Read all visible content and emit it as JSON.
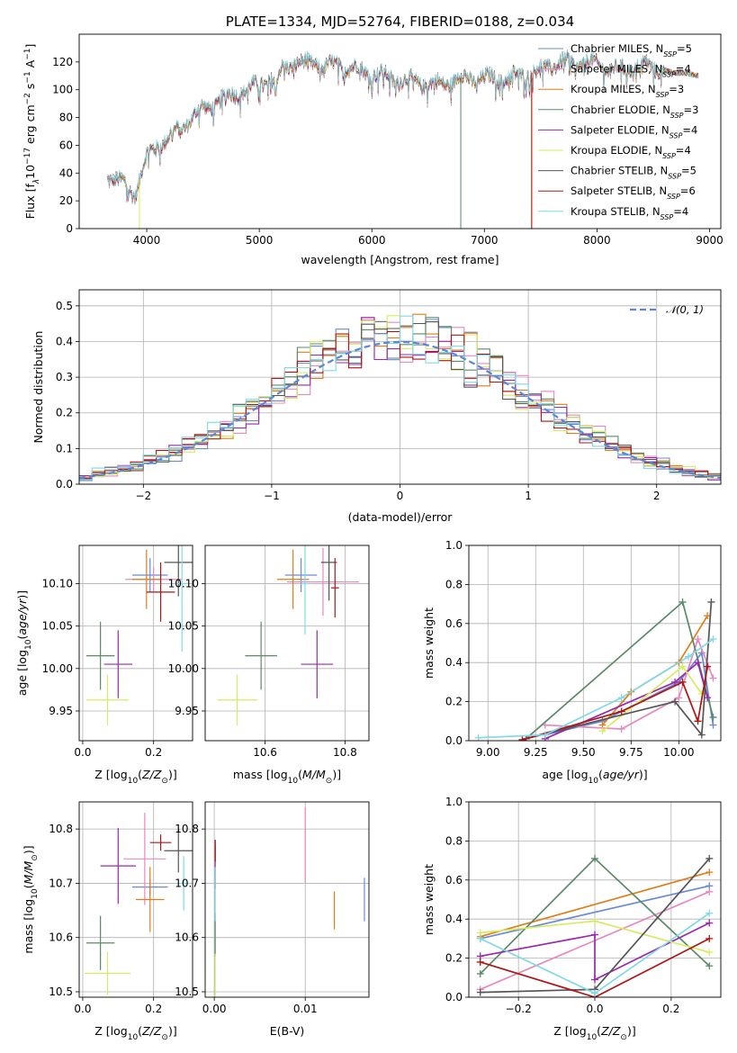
{
  "series": [
    {
      "name": "Chabrier MILES",
      "nssp": "5",
      "color": "#6a8ad6"
    },
    {
      "name": "Salpeter MILES",
      "nssp": "4",
      "color": "#e888c0"
    },
    {
      "name": "Kroupa MILES",
      "nssp": "3",
      "color": "#e07d1a"
    },
    {
      "name": "Chabrier ELODIE",
      "nssp": "3",
      "color": "#5a8a68"
    },
    {
      "name": "Salpeter ELODIE",
      "nssp": "4",
      "color": "#9b27b0"
    },
    {
      "name": "Kroupa ELODIE",
      "nssp": "4",
      "color": "#d6ec60"
    },
    {
      "name": "Chabrier STELIB",
      "nssp": "5",
      "color": "#555555"
    },
    {
      "name": "Salpeter STELIB",
      "nssp": "6",
      "color": "#b01515"
    },
    {
      "name": "Kroupa STELIB",
      "nssp": "4",
      "color": "#7fd9e6"
    }
  ],
  "chart_data": [
    {
      "type": "line",
      "id": "spectrum",
      "title": "PLATE=1334, MJD=52764, FIBERID=0188, z=0.034",
      "xlabel": "wavelength [Angstrom, rest frame]",
      "ylabel_parts": [
        "Flux [f",
        "λ",
        "10",
        "−17",
        " erg cm",
        "−2",
        " s",
        "−1",
        " A",
        "−1",
        "]"
      ],
      "xlim": [
        3400,
        9100
      ],
      "ylim": [
        0,
        140
      ],
      "xticks": [
        4000,
        5000,
        6000,
        7000,
        8000,
        9000
      ],
      "yticks": [
        0,
        20,
        40,
        60,
        80,
        100,
        120
      ],
      "legend_position": "upper right",
      "legend_subscript": "SSP",
      "legend_prefix": "N",
      "continuum": [
        [
          3650,
          38
        ],
        [
          3700,
          36
        ],
        [
          3800,
          32
        ],
        [
          3850,
          28
        ],
        [
          3900,
          25
        ],
        [
          3950,
          40
        ],
        [
          4000,
          52
        ],
        [
          4100,
          60
        ],
        [
          4200,
          66
        ],
        [
          4300,
          72
        ],
        [
          4400,
          80
        ],
        [
          4500,
          86
        ],
        [
          4600,
          90
        ],
        [
          4700,
          94
        ],
        [
          4800,
          98
        ],
        [
          4900,
          100
        ],
        [
          5000,
          104
        ],
        [
          5100,
          108
        ],
        [
          5150,
          104
        ],
        [
          5200,
          115
        ],
        [
          5300,
          120
        ],
        [
          5400,
          118
        ],
        [
          5500,
          120
        ],
        [
          5600,
          116
        ],
        [
          5700,
          118
        ],
        [
          5800,
          116
        ],
        [
          5900,
          114
        ],
        [
          6000,
          112
        ],
        [
          6100,
          110
        ],
        [
          6200,
          108
        ],
        [
          6300,
          106
        ],
        [
          6400,
          106
        ],
        [
          6500,
          104
        ],
        [
          6600,
          104
        ],
        [
          6700,
          106
        ],
        [
          6800,
          108
        ],
        [
          6900,
          108
        ],
        [
          7000,
          108
        ],
        [
          7100,
          108
        ],
        [
          7200,
          108
        ],
        [
          7300,
          110
        ],
        [
          7400,
          112
        ],
        [
          7500,
          114
        ],
        [
          7600,
          118
        ],
        [
          7700,
          120
        ],
        [
          7800,
          118
        ],
        [
          7900,
          120
        ],
        [
          8000,
          118
        ],
        [
          8100,
          116
        ],
        [
          8200,
          114
        ],
        [
          8300,
          116
        ],
        [
          8400,
          118
        ],
        [
          8500,
          116
        ],
        [
          8600,
          114
        ],
        [
          8700,
          112
        ],
        [
          8800,
          112
        ],
        [
          8900,
          110
        ]
      ],
      "dropouts": [
        {
          "series": 5,
          "x": 3935,
          "y0": 0
        },
        {
          "series": 3,
          "x": 6790,
          "y0": 0
        },
        {
          "series": 2,
          "x": 7420,
          "y0": 0
        },
        {
          "series": 7,
          "x": 7420,
          "y0": 0
        }
      ]
    },
    {
      "type": "histogram",
      "id": "residuals",
      "xlabel": "(data-model)/error",
      "ylabel": "Normed distribution",
      "xlim": [
        -2.5,
        2.5
      ],
      "ylim": [
        0,
        0.545
      ],
      "xticks": [
        -2,
        -1,
        0,
        1,
        2
      ],
      "yticks": [
        0.0,
        0.1,
        0.2,
        0.3,
        0.4,
        0.5
      ],
      "grid": true,
      "reference": {
        "label": "𝒩(0, 1)",
        "mean": 0,
        "sigma": 1,
        "color": "#5b87d6"
      },
      "legend_position": "upper right",
      "bin_width": 0.1,
      "bin_start": -2.5
    },
    {
      "type": "errorbar",
      "id": "age-vs-z",
      "xlabel": "Z [log10(Z/Z⊙)]",
      "ylabel": "age  [log10(age/yr)]",
      "xlim": [
        -0.01,
        0.31
      ],
      "ylim": [
        9.915,
        10.145
      ],
      "xticks": [
        0.0,
        0.2
      ],
      "xtick_labels": [
        "0.0",
        "0.2"
      ],
      "yticks": [
        9.95,
        10.0,
        10.05,
        10.1
      ],
      "ytick_labels": [
        "9.95",
        "10.00",
        "10.05",
        "10.10"
      ],
      "points": [
        {
          "s": 0,
          "x": 0.19,
          "y": 10.11,
          "ex": 0.05,
          "ey": 0.02
        },
        {
          "s": 1,
          "x": 0.2,
          "y": 10.105,
          "ex": 0.08,
          "ey": 0.015
        },
        {
          "s": 2,
          "x": 0.18,
          "y": 10.105,
          "ex": 0.04,
          "ey": 0.035
        },
        {
          "s": 3,
          "x": 0.05,
          "y": 10.015,
          "ex": 0.04,
          "ey": 0.04
        },
        {
          "s": 4,
          "x": 0.1,
          "y": 10.005,
          "ex": 0.04,
          "ey": 0.04
        },
        {
          "s": 5,
          "x": 0.07,
          "y": 9.963,
          "ex": 0.06,
          "ey": 0.03
        },
        {
          "s": 6,
          "x": 0.27,
          "y": 10.125,
          "ex": 0.04,
          "ey": 0.04
        },
        {
          "s": 7,
          "x": 0.22,
          "y": 10.09,
          "ex": 0.04,
          "ey": 0.035
        },
        {
          "s": 8,
          "x": 0.28,
          "y": 10.1,
          "ex": 0.02,
          "ey": 0.08
        }
      ]
    },
    {
      "type": "errorbar",
      "id": "age-vs-mass",
      "xlabel": "mass [log10(M/M⊙)]",
      "ylabel": "",
      "xlim": [
        10.45,
        10.86
      ],
      "ylim": [
        9.915,
        10.145
      ],
      "xticks": [
        10.6,
        10.8
      ],
      "xtick_labels": [
        "10.6",
        "10.8"
      ],
      "yticks": [
        9.95,
        10.0,
        10.05,
        10.1
      ],
      "ytick_labels": [
        "9.95",
        "10.00",
        "10.05",
        "10.10"
      ],
      "points": [
        {
          "s": 0,
          "x": 10.69,
          "y": 10.11,
          "ex": 0.04,
          "ey": 0.02
        },
        {
          "s": 1,
          "x": 10.745,
          "y": 10.102,
          "ex": 0.09,
          "ey": 0.04
        },
        {
          "s": 2,
          "x": 10.67,
          "y": 10.105,
          "ex": 0.04,
          "ey": 0.035
        },
        {
          "s": 3,
          "x": 10.59,
          "y": 10.015,
          "ex": 0.04,
          "ey": 0.04
        },
        {
          "s": 4,
          "x": 10.73,
          "y": 10.005,
          "ex": 0.04,
          "ey": 0.04
        },
        {
          "s": 5,
          "x": 10.53,
          "y": 9.963,
          "ex": 0.05,
          "ey": 0.03
        },
        {
          "s": 6,
          "x": 10.76,
          "y": 10.125,
          "ex": 0.02,
          "ey": 0.045
        },
        {
          "s": 7,
          "x": 10.775,
          "y": 10.095,
          "ex": 0.01,
          "ey": 0.035
        },
        {
          "s": 8,
          "x": 10.7,
          "y": 10.1,
          "ex": 0.01,
          "ey": 0.06
        }
      ]
    },
    {
      "type": "line",
      "id": "weight-vs-age",
      "xlabel": "age  [log10(age/yr)]",
      "ylabel": "mass weight",
      "xlim": [
        8.9,
        10.22
      ],
      "ylim": [
        0,
        1.0
      ],
      "xticks": [
        9.0,
        9.25,
        9.5,
        9.75,
        10.0
      ],
      "xtick_labels": [
        "9.00",
        "9.25",
        "9.50",
        "9.75",
        "10.00"
      ],
      "yticks": [
        0.0,
        0.2,
        0.4,
        0.6,
        0.8,
        1.0
      ],
      "ytick_labels": [
        "0.0",
        "0.2",
        "0.4",
        "0.6",
        "0.8",
        "1.0"
      ],
      "grid": true,
      "lines": [
        {
          "s": 0,
          "pts": [
            [
              9.3,
              0.03
            ],
            [
              9.6,
              0.1
            ],
            [
              10.0,
              0.3
            ],
            [
              10.12,
              0.45
            ],
            [
              10.18,
              0.08
            ]
          ]
        },
        {
          "s": 1,
          "pts": [
            [
              9.3,
              0.08
            ],
            [
              9.7,
              0.06
            ],
            [
              10.0,
              0.22
            ],
            [
              10.1,
              0.52
            ],
            [
              10.18,
              0.32
            ]
          ]
        },
        {
          "s": 2,
          "pts": [
            [
              9.6,
              0.08
            ],
            [
              9.75,
              0.25
            ],
            [
              10.0,
              0.4
            ],
            [
              10.15,
              0.64
            ]
          ]
        },
        {
          "s": 3,
          "pts": [
            [
              9.2,
              0.01
            ],
            [
              10.02,
              0.71
            ],
            [
              10.18,
              0.12
            ]
          ]
        },
        {
          "s": 4,
          "pts": [
            [
              9.3,
              0.01
            ],
            [
              9.98,
              0.3
            ],
            [
              10.1,
              0.4
            ],
            [
              10.15,
              0.22
            ]
          ]
        },
        {
          "s": 5,
          "pts": [
            [
              9.6,
              0.05
            ],
            [
              10.02,
              0.38
            ],
            [
              10.12,
              0.24
            ]
          ]
        },
        {
          "s": 6,
          "pts": [
            [
              9.2,
              0.01
            ],
            [
              9.98,
              0.2
            ],
            [
              10.12,
              0.03
            ],
            [
              10.17,
              0.71
            ]
          ]
        },
        {
          "s": 7,
          "pts": [
            [
              9.18,
              0.005
            ],
            [
              9.7,
              0.15
            ],
            [
              10.02,
              0.3
            ],
            [
              10.1,
              0.1
            ],
            [
              10.15,
              0.38
            ]
          ]
        },
        {
          "s": 8,
          "pts": [
            [
              8.95,
              0.015
            ],
            [
              9.3,
              0.03
            ],
            [
              9.7,
              0.22
            ],
            [
              10.05,
              0.43
            ],
            [
              10.18,
              0.52
            ]
          ]
        }
      ]
    },
    {
      "type": "errorbar",
      "id": "mass-vs-z",
      "xlabel": "Z [log10(Z/Z⊙)]",
      "ylabel": "mass [log10(M/M⊙)]",
      "xlim": [
        -0.01,
        0.31
      ],
      "ylim": [
        10.49,
        10.85
      ],
      "xticks": [
        0.0,
        0.2
      ],
      "xtick_labels": [
        "0.0",
        "0.2"
      ],
      "yticks": [
        10.5,
        10.6,
        10.7,
        10.8
      ],
      "ytick_labels": [
        "10.5",
        "10.6",
        "10.7",
        "10.8"
      ],
      "points": [
        {
          "s": 0,
          "x": 0.19,
          "y": 10.693,
          "ex": 0.05,
          "ey": 0.015
        },
        {
          "s": 1,
          "x": 0.175,
          "y": 10.745,
          "ex": 0.06,
          "ey": 0.085
        },
        {
          "s": 2,
          "x": 0.19,
          "y": 10.67,
          "ex": 0.04,
          "ey": 0.06
        },
        {
          "s": 3,
          "x": 0.05,
          "y": 10.59,
          "ex": 0.04,
          "ey": 0.05
        },
        {
          "s": 4,
          "x": 0.1,
          "y": 10.732,
          "ex": 0.05,
          "ey": 0.07
        },
        {
          "s": 5,
          "x": 0.07,
          "y": 10.534,
          "ex": 0.065,
          "ey": 0.04
        },
        {
          "s": 6,
          "x": 0.27,
          "y": 10.76,
          "ex": 0.04,
          "ey": 0.04
        },
        {
          "s": 7,
          "x": 0.22,
          "y": 10.775,
          "ex": 0.03,
          "ey": 0.015
        },
        {
          "s": 8,
          "x": 0.285,
          "y": 10.7,
          "ex": 0.02,
          "ey": 0.05
        }
      ]
    },
    {
      "type": "errorbar",
      "id": "mass-vs-ebv",
      "xlabel": "E(B-V)",
      "ylabel": "",
      "xlim": [
        -0.001,
        0.017
      ],
      "ylim": [
        10.49,
        10.85
      ],
      "xticks": [
        0.0,
        0.01
      ],
      "xtick_labels": [
        "0.00",
        "0.01"
      ],
      "yticks": [
        10.5,
        10.6,
        10.7,
        10.8
      ],
      "ytick_labels": [
        "10.5",
        "10.6",
        "10.7",
        "10.8"
      ],
      "points": [
        {
          "s": 0,
          "x": 0.0165,
          "y": 10.67,
          "ex": 0,
          "ey": 0.04
        },
        {
          "s": 1,
          "x": 0.01,
          "y": 10.77,
          "ex": 0,
          "ey": 0.07
        },
        {
          "s": 2,
          "x": 0.0132,
          "y": 10.65,
          "ex": 0,
          "ey": 0.035
        },
        {
          "s": 3,
          "x": 0.0001,
          "y": 10.605,
          "ex": 0,
          "ey": 0.04
        },
        {
          "s": 4,
          "x": 0.0001,
          "y": 10.73,
          "ex": 0,
          "ey": 0.04
        },
        {
          "s": 5,
          "x": 0.0001,
          "y": 10.53,
          "ex": 0,
          "ey": 0.04
        },
        {
          "s": 6,
          "x": 0.0001,
          "y": 10.76,
          "ex": 0,
          "ey": 0.02
        },
        {
          "s": 7,
          "x": 0.0001,
          "y": 10.76,
          "ex": 0,
          "ey": 0.02
        },
        {
          "s": 8,
          "x": 0.0001,
          "y": 10.68,
          "ex": 0,
          "ey": 0.05
        }
      ]
    },
    {
      "type": "line",
      "id": "weight-vs-z",
      "xlabel": "Z [log10(Z/Z⊙)]",
      "ylabel": "mass weight",
      "xlim": [
        -0.33,
        0.33
      ],
      "ylim": [
        0,
        1.0
      ],
      "xticks": [
        -0.2,
        0.0,
        0.2
      ],
      "xtick_labels": [
        "−0.2",
        "0.0",
        "0.2"
      ],
      "yticks": [
        0.0,
        0.2,
        0.4,
        0.6,
        0.8,
        1.0
      ],
      "ytick_labels": [
        "0.0",
        "0.2",
        "0.4",
        "0.6",
        "0.8",
        "1.0"
      ],
      "grid": true,
      "lines": [
        {
          "s": 0,
          "pts": [
            [
              -0.3,
              0.3
            ],
            [
              0.3,
              0.57
            ]
          ]
        },
        {
          "s": 1,
          "pts": [
            [
              -0.3,
              0.04
            ],
            [
              0.3,
              0.54
            ]
          ]
        },
        {
          "s": 2,
          "pts": [
            [
              -0.3,
              0.31
            ],
            [
              0.3,
              0.64
            ]
          ]
        },
        {
          "s": 3,
          "pts": [
            [
              -0.3,
              0.12
            ],
            [
              0.0,
              0.71
            ],
            [
              0.3,
              0.16
            ]
          ]
        },
        {
          "s": 4,
          "pts": [
            [
              -0.3,
              0.21
            ],
            [
              0.0,
              0.32
            ],
            [
              0.0,
              0.09
            ],
            [
              0.3,
              0.38
            ]
          ]
        },
        {
          "s": 5,
          "pts": [
            [
              -0.3,
              0.33
            ],
            [
              0.0,
              0.39
            ],
            [
              0.3,
              0.23
            ]
          ]
        },
        {
          "s": 6,
          "pts": [
            [
              -0.3,
              0.025
            ],
            [
              0.0,
              0.04
            ],
            [
              0.3,
              0.71
            ]
          ]
        },
        {
          "s": 7,
          "pts": [
            [
              -0.3,
              0.18
            ],
            [
              0.0,
              0.0
            ],
            [
              0.3,
              0.3
            ]
          ]
        },
        {
          "s": 8,
          "pts": [
            [
              -0.3,
              0.3
            ],
            [
              0.0,
              0.02
            ],
            [
              0.3,
              0.43
            ]
          ]
        }
      ]
    }
  ]
}
